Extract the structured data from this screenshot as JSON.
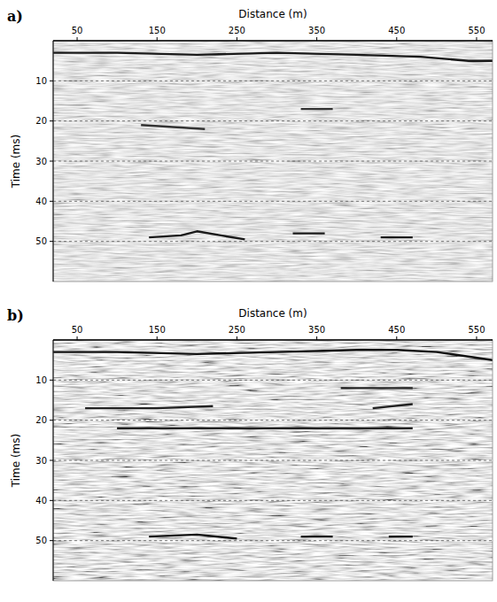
{
  "chart_data": [
    {
      "type": "line",
      "label": "a)",
      "x_label": "Distance (m)",
      "y_label": "Time (ms)",
      "xlim": [
        20,
        570
      ],
      "ylim": [
        0,
        60
      ],
      "xticks": [
        50,
        150,
        250,
        350,
        450,
        550
      ],
      "yticks": [
        10,
        20,
        30,
        40,
        50
      ],
      "grid": true,
      "series": [
        {
          "color": "#1a1a1a",
          "x": [
            20,
            100,
            200,
            300,
            400,
            480,
            540,
            570
          ],
          "values": [
            3,
            3,
            3.5,
            3,
            3.5,
            4,
            5,
            5
          ]
        },
        {
          "color": "#333333",
          "x": [
            130,
            170,
            210
          ],
          "values": [
            21,
            21.5,
            22
          ]
        },
        {
          "color": "#333333",
          "x": [
            330,
            370
          ],
          "values": [
            17,
            17
          ]
        },
        {
          "color": "#1a1a1a",
          "x": [
            140,
            180,
            200,
            230,
            260
          ],
          "values": [
            49,
            48.5,
            47.5,
            48.5,
            49.5
          ]
        },
        {
          "color": "#1a1a1a",
          "x": [
            320,
            360
          ],
          "values": [
            48,
            48
          ]
        },
        {
          "color": "#1a1a1a",
          "x": [
            430,
            470
          ],
          "values": [
            49,
            49
          ]
        }
      ]
    },
    {
      "type": "line",
      "label": "b)",
      "x_label": "Distance (m)",
      "y_label": "Time (ms)",
      "xlim": [
        20,
        570
      ],
      "ylim": [
        0,
        60
      ],
      "xticks": [
        50,
        150,
        250,
        350,
        450,
        550
      ],
      "yticks": [
        10,
        20,
        30,
        40,
        50
      ],
      "grid": true,
      "series": [
        {
          "color": "#111111",
          "x": [
            20,
            100,
            200,
            300,
            400,
            450,
            500,
            570
          ],
          "values": [
            3,
            3,
            3.5,
            3,
            2.5,
            2.5,
            3,
            5
          ]
        },
        {
          "color": "#222222",
          "x": [
            380,
            470
          ],
          "values": [
            12,
            12
          ]
        },
        {
          "color": "#222222",
          "x": [
            60,
            150,
            220
          ],
          "values": [
            17,
            17,
            16.5
          ]
        },
        {
          "color": "#222222",
          "x": [
            420,
            470
          ],
          "values": [
            17,
            16
          ]
        },
        {
          "color": "#222222",
          "x": [
            100,
            250,
            350,
            470
          ],
          "values": [
            22,
            22,
            22,
            22
          ]
        },
        {
          "color": "#111111",
          "x": [
            140,
            200,
            250
          ],
          "values": [
            49,
            48.5,
            49.5
          ]
        },
        {
          "color": "#111111",
          "x": [
            330,
            370
          ],
          "values": [
            49,
            49
          ]
        },
        {
          "color": "#111111",
          "x": [
            440,
            470
          ],
          "values": [
            49,
            49
          ]
        }
      ]
    }
  ]
}
